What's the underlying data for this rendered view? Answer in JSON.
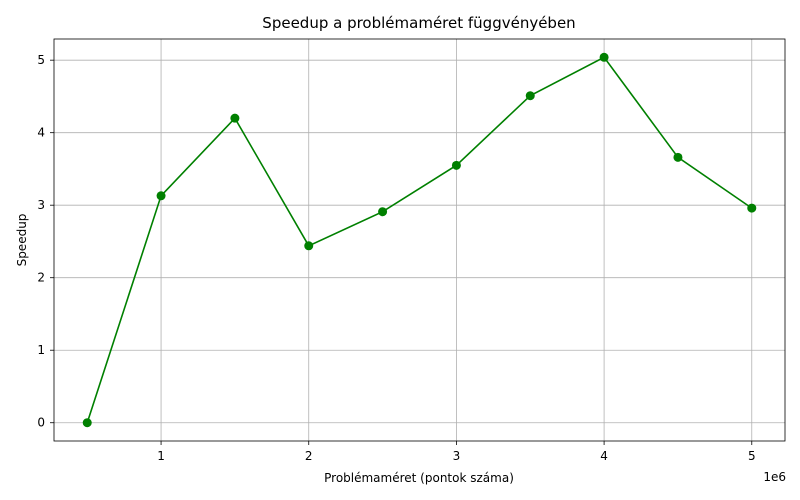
{
  "chart_data": {
    "type": "line",
    "title": "Speedup a problémaméret függvényében",
    "xlabel": "Problémaméret (pontok száma)",
    "ylabel": "Speedup",
    "x_offset_text": "1e6",
    "x": [
      500000,
      1000000,
      1500000,
      2000000,
      2500000,
      3000000,
      3500000,
      4000000,
      4500000,
      5000000
    ],
    "series": [
      {
        "values": [
          0.0,
          3.13,
          4.2,
          2.44,
          2.91,
          3.55,
          4.51,
          5.04,
          3.66,
          2.96
        ],
        "color": "#008000",
        "marker": "circle"
      }
    ],
    "xlim": [
      275000,
      5225000
    ],
    "ylim": [
      -0.252,
      5.292
    ],
    "xticks": [
      1000000,
      2000000,
      3000000,
      4000000,
      5000000
    ],
    "xtick_labels": [
      "1",
      "2",
      "3",
      "4",
      "5"
    ],
    "yticks": [
      0,
      1,
      2,
      3,
      4,
      5
    ],
    "ytick_labels": [
      "0",
      "1",
      "2",
      "3",
      "4",
      "5"
    ],
    "grid": true
  }
}
